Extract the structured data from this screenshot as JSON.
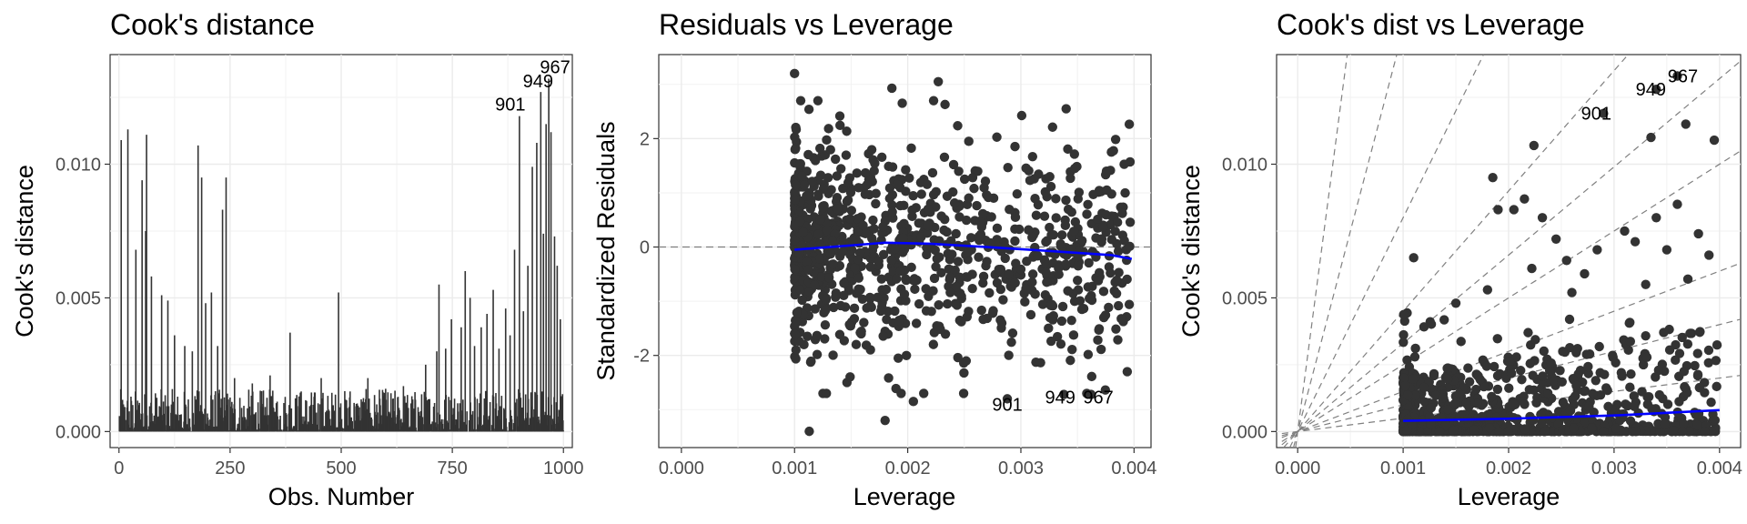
{
  "chart_data": [
    {
      "type": "bar",
      "title": "Cook's distance",
      "xlabel": "Obs. Number",
      "ylabel": "Cook's distance",
      "xlim": [
        -20,
        1020
      ],
      "ylim": [
        -0.0006,
        0.0141
      ],
      "xticks": [
        0,
        250,
        500,
        750,
        1000
      ],
      "xtick_labels": [
        "0",
        "250",
        "500",
        "750",
        "1000"
      ],
      "yticks": [
        0.0,
        0.005,
        0.01
      ],
      "ytick_labels": [
        "0.000",
        "0.005",
        "0.010"
      ],
      "grid": true,
      "bar_color": "#333333",
      "prominent_bars": [
        {
          "x": 5,
          "value": 0.0109
        },
        {
          "x": 20,
          "value": 0.0113
        },
        {
          "x": 38,
          "value": 0.0068
        },
        {
          "x": 52,
          "value": 0.0094
        },
        {
          "x": 60,
          "value": 0.0075
        },
        {
          "x": 62,
          "value": 0.0111
        },
        {
          "x": 73,
          "value": 0.0058
        },
        {
          "x": 96,
          "value": 0.0051
        },
        {
          "x": 110,
          "value": 0.0049
        },
        {
          "x": 125,
          "value": 0.0036
        },
        {
          "x": 148,
          "value": 0.0032
        },
        {
          "x": 165,
          "value": 0.003
        },
        {
          "x": 178,
          "value": 0.0107
        },
        {
          "x": 186,
          "value": 0.0095
        },
        {
          "x": 195,
          "value": 0.0048
        },
        {
          "x": 208,
          "value": 0.0052
        },
        {
          "x": 222,
          "value": 0.0032
        },
        {
          "x": 233,
          "value": 0.0083
        },
        {
          "x": 241,
          "value": 0.0095
        },
        {
          "x": 260,
          "value": 0.002
        },
        {
          "x": 300,
          "value": 0.0018
        },
        {
          "x": 340,
          "value": 0.0021
        },
        {
          "x": 385,
          "value": 0.0037
        },
        {
          "x": 410,
          "value": 0.0015
        },
        {
          "x": 455,
          "value": 0.002
        },
        {
          "x": 494,
          "value": 0.0052
        },
        {
          "x": 520,
          "value": 0.0015
        },
        {
          "x": 560,
          "value": 0.002
        },
        {
          "x": 600,
          "value": 0.0016
        },
        {
          "x": 640,
          "value": 0.0017
        },
        {
          "x": 690,
          "value": 0.0025
        },
        {
          "x": 715,
          "value": 0.003
        },
        {
          "x": 720,
          "value": 0.0055
        },
        {
          "x": 735,
          "value": 0.0031
        },
        {
          "x": 748,
          "value": 0.0042
        },
        {
          "x": 770,
          "value": 0.0039
        },
        {
          "x": 779,
          "value": 0.006
        },
        {
          "x": 790,
          "value": 0.005
        },
        {
          "x": 800,
          "value": 0.0032
        },
        {
          "x": 815,
          "value": 0.0039
        },
        {
          "x": 828,
          "value": 0.0044
        },
        {
          "x": 842,
          "value": 0.0053
        },
        {
          "x": 855,
          "value": 0.0031
        },
        {
          "x": 870,
          "value": 0.0046
        },
        {
          "x": 880,
          "value": 0.0036
        },
        {
          "x": 890,
          "value": 0.0068
        },
        {
          "x": 901,
          "value": 0.0118
        },
        {
          "x": 910,
          "value": 0.0045
        },
        {
          "x": 920,
          "value": 0.0062
        },
        {
          "x": 930,
          "value": 0.0099
        },
        {
          "x": 940,
          "value": 0.0108
        },
        {
          "x": 949,
          "value": 0.0127
        },
        {
          "x": 955,
          "value": 0.0074
        },
        {
          "x": 961,
          "value": 0.0115
        },
        {
          "x": 967,
          "value": 0.0132
        },
        {
          "x": 972,
          "value": 0.0112
        },
        {
          "x": 980,
          "value": 0.0073
        },
        {
          "x": 986,
          "value": 0.0062
        },
        {
          "x": 993,
          "value": 0.0042
        }
      ],
      "background_bars": {
        "n": 1000,
        "typical_max": 0.0016,
        "note": "many small bars between 0 and ~0.0016"
      },
      "annotations": [
        {
          "x": 967,
          "y": 0.0132,
          "label": "967"
        },
        {
          "x": 949,
          "y": 0.0127,
          "label": "949"
        },
        {
          "x": 901,
          "y": 0.0118,
          "label": "901"
        }
      ]
    },
    {
      "type": "scatter",
      "title": "Residuals vs Leverage",
      "xlabel": "Leverage",
      "ylabel": "Standardized Residuals",
      "xlim": [
        -0.0002,
        0.00415
      ],
      "ylim": [
        -3.7,
        3.55
      ],
      "xticks": [
        0.0,
        0.001,
        0.002,
        0.003,
        0.004
      ],
      "xtick_labels": [
        "0.000",
        "0.001",
        "0.002",
        "0.003",
        "0.004"
      ],
      "yticks": [
        -2,
        0,
        2
      ],
      "ytick_labels": [
        "-2",
        "0",
        "2"
      ],
      "grid": true,
      "reference_line_y": 0,
      "point_color": "#333333",
      "point_count": 1000,
      "smooth_color": "#0000ff",
      "smooth": [
        [
          0.001,
          -0.05
        ],
        [
          0.0015,
          0.03
        ],
        [
          0.0018,
          0.08
        ],
        [
          0.0022,
          0.06
        ],
        [
          0.0027,
          0.0
        ],
        [
          0.0033,
          -0.08
        ],
        [
          0.0038,
          -0.15
        ],
        [
          0.00398,
          -0.22
        ]
      ],
      "highlighted_points": [
        {
          "x": 0.001,
          "y": 3.2
        },
        {
          "x": 0.00227,
          "y": 3.05
        },
        {
          "x": 0.00186,
          "y": 2.93
        },
        {
          "x": 0.0034,
          "y": 2.55
        },
        {
          "x": 0.00113,
          "y": -3.4
        },
        {
          "x": 0.0018,
          "y": -3.2
        },
        {
          "x": 0.00205,
          "y": -2.85
        },
        {
          "x": 0.00288,
          "y": -2.8
        },
        {
          "x": 0.00338,
          "y": -2.72
        },
        {
          "x": 0.00362,
          "y": -2.72
        },
        {
          "x": 0.00394,
          "y": -2.3
        }
      ],
      "annotations": [
        {
          "x": 0.00288,
          "y": -2.8,
          "label": "901"
        },
        {
          "x": 0.00338,
          "y": -2.72,
          "label": "949"
        },
        {
          "x": 0.00362,
          "y": -2.72,
          "label": "967"
        }
      ]
    },
    {
      "type": "scatter",
      "title": "Cook's dist vs Leverage",
      "xlabel": "Leverage",
      "ylabel": "Cook's distance",
      "xlim": [
        -0.0002,
        0.0042
      ],
      "ylim": [
        -0.0006,
        0.0141
      ],
      "xticks": [
        0.0,
        0.001,
        0.002,
        0.003,
        0.004
      ],
      "xtick_labels": [
        "0.000",
        "0.001",
        "0.002",
        "0.003",
        "0.004"
      ],
      "yticks": [
        0.0,
        0.005,
        0.01
      ],
      "ytick_labels": [
        "0.000",
        "0.005",
        "0.010"
      ],
      "grid": true,
      "point_color": "#333333",
      "point_count": 1000,
      "smooth_color": "#0000ff",
      "smooth": [
        [
          0.001,
          0.0004
        ],
        [
          0.002,
          0.00048
        ],
        [
          0.003,
          0.0006
        ],
        [
          0.004,
          0.0008
        ]
      ],
      "reference_slopes": [
        0.5,
        1,
        1.5,
        2.5,
        3.3,
        4.5,
        8,
        15,
        30
      ],
      "reference_line_color": "#808080",
      "highlighted_points": [
        {
          "x": 0.0029,
          "y": 0.0119
        },
        {
          "x": 0.0034,
          "y": 0.0128
        },
        {
          "x": 0.0036,
          "y": 0.0133
        },
        {
          "x": 0.00335,
          "y": 0.011
        },
        {
          "x": 0.00368,
          "y": 0.0115
        },
        {
          "x": 0.00395,
          "y": 0.0109
        },
        {
          "x": 0.00224,
          "y": 0.0107
        },
        {
          "x": 0.00185,
          "y": 0.0095
        },
        {
          "x": 0.00215,
          "y": 0.0087
        },
        {
          "x": 0.0019,
          "y": 0.0083
        },
        {
          "x": 0.00205,
          "y": 0.0083
        },
        {
          "x": 0.0036,
          "y": 0.0085
        },
        {
          "x": 0.0034,
          "y": 0.008
        },
        {
          "x": 0.00232,
          "y": 0.008
        },
        {
          "x": 0.0011,
          "y": 0.0065
        },
        {
          "x": 0.00245,
          "y": 0.0072
        },
        {
          "x": 0.0031,
          "y": 0.0075
        },
        {
          "x": 0.0038,
          "y": 0.0074
        },
        {
          "x": 0.00284,
          "y": 0.0068
        },
        {
          "x": 0.0032,
          "y": 0.0071
        },
        {
          "x": 0.00255,
          "y": 0.0064
        },
        {
          "x": 0.0035,
          "y": 0.0068
        },
        {
          "x": 0.0039,
          "y": 0.0066
        },
        {
          "x": 0.00222,
          "y": 0.0061
        },
        {
          "x": 0.00272,
          "y": 0.0059
        },
        {
          "x": 0.0015,
          "y": 0.0048
        },
        {
          "x": 0.0018,
          "y": 0.0053
        },
        {
          "x": 0.0026,
          "y": 0.0052
        },
        {
          "x": 0.0033,
          "y": 0.0055
        },
        {
          "x": 0.0037,
          "y": 0.0057
        }
      ],
      "annotations": [
        {
          "x": 0.0029,
          "y": 0.0119,
          "label": "901"
        },
        {
          "x": 0.0034,
          "y": 0.0128,
          "label": "949"
        },
        {
          "x": 0.0036,
          "y": 0.0133,
          "label": "967"
        }
      ]
    }
  ]
}
